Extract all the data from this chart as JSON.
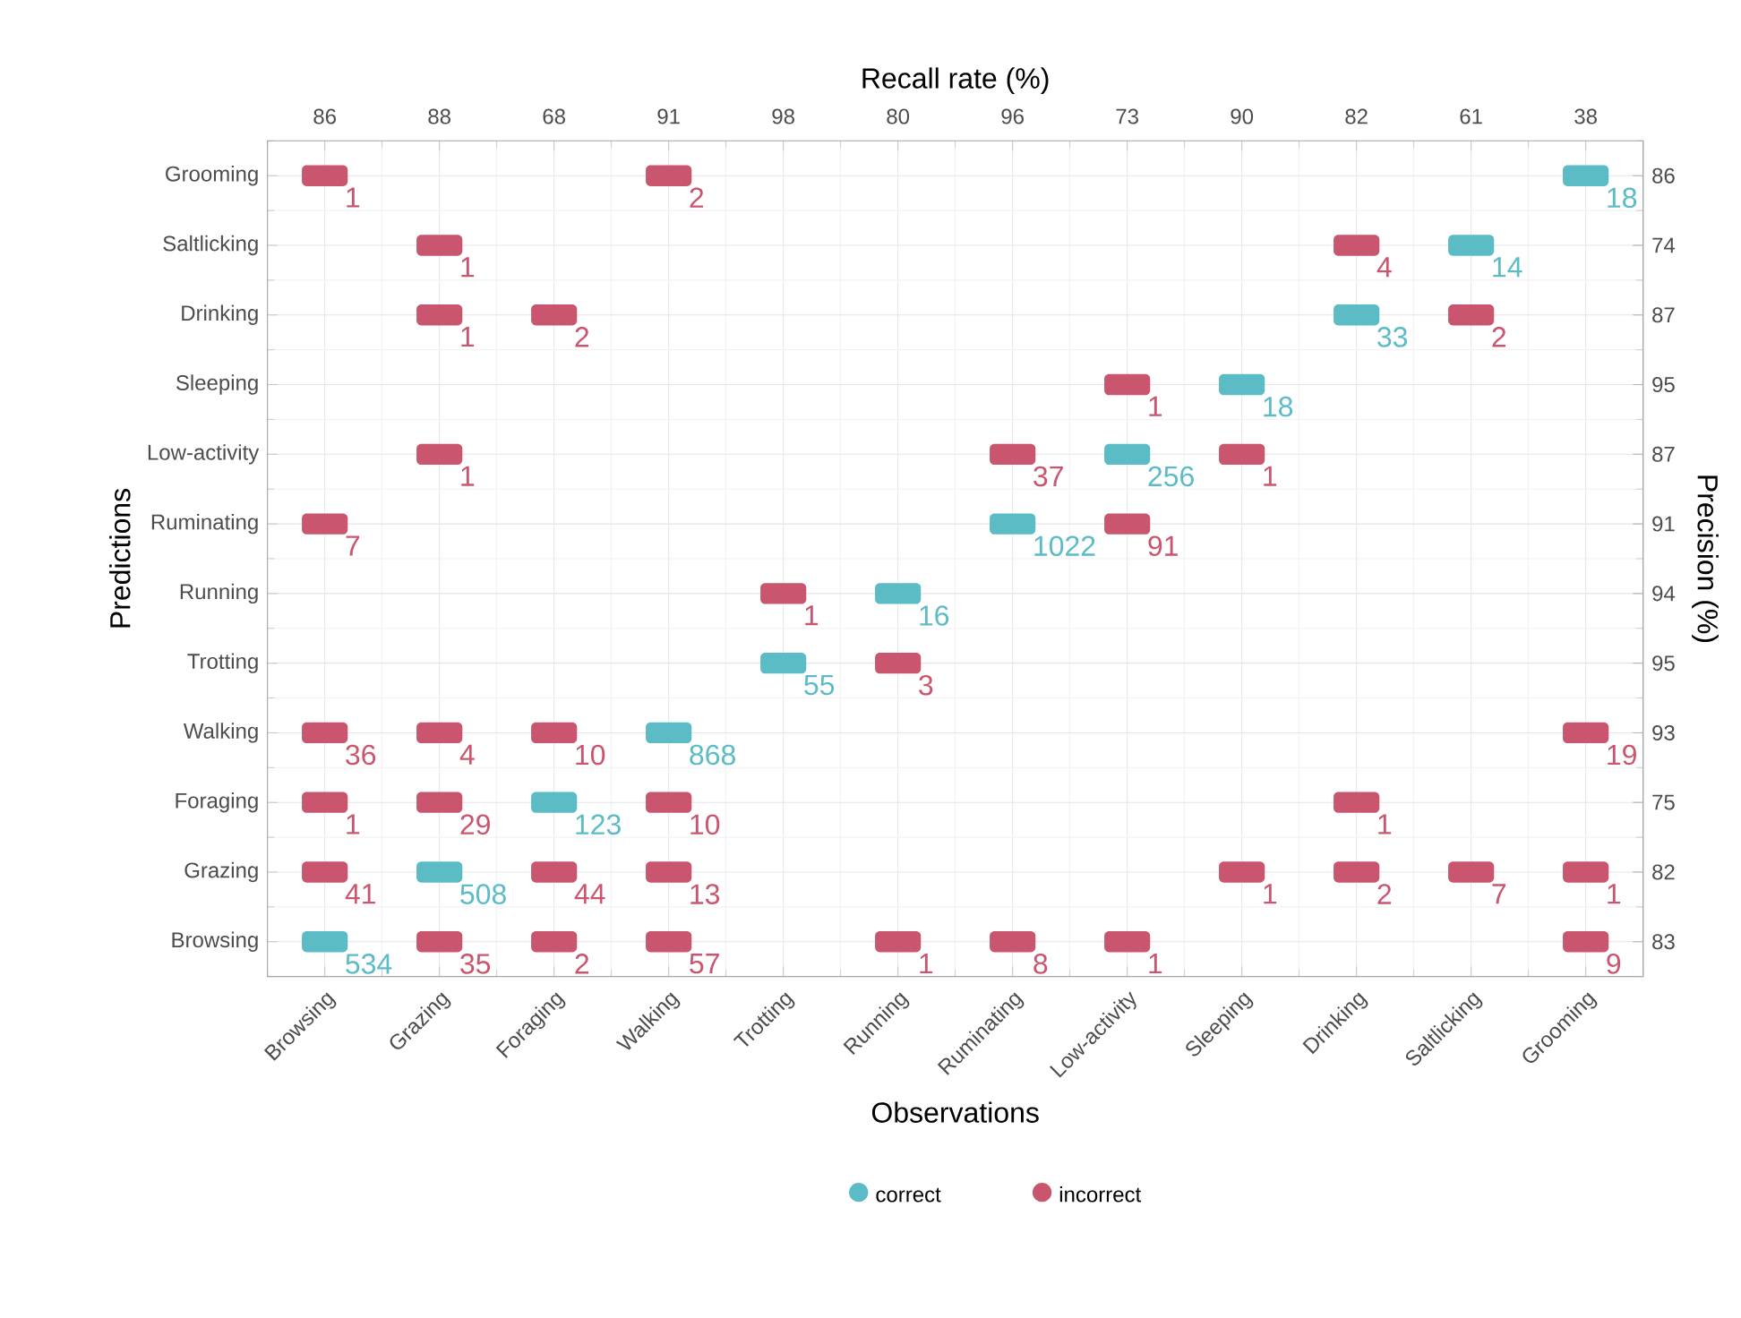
{
  "chart_data": {
    "type": "heatmap",
    "xlabel": "Observations",
    "ylabel": "Predictions",
    "x2label": "Recall rate (%)",
    "y2label": "Precision (%)",
    "categories": [
      "Browsing",
      "Grazing",
      "Foraging",
      "Walking",
      "Trotting",
      "Running",
      "Ruminating",
      "Low-activity",
      "Sleeping",
      "Drinking",
      "Saltlicking",
      "Grooming"
    ],
    "y_categories": [
      "Grooming",
      "Saltlicking",
      "Drinking",
      "Sleeping",
      "Low-activity",
      "Ruminating",
      "Running",
      "Trotting",
      "Walking",
      "Foraging",
      "Grazing",
      "Browsing"
    ],
    "y2_categories": [
      "86",
      "74",
      "87",
      "95",
      "87",
      "91",
      "94",
      "95",
      "93",
      "75",
      "82",
      "83"
    ],
    "cells": [
      [
        1,
        null,
        null,
        2,
        null,
        null,
        null,
        null,
        null,
        null,
        null,
        18
      ],
      [
        null,
        1,
        null,
        null,
        null,
        null,
        null,
        null,
        null,
        4,
        14,
        null
      ],
      [
        null,
        1,
        2,
        null,
        null,
        null,
        null,
        null,
        null,
        33,
        2,
        null
      ],
      [
        null,
        null,
        null,
        null,
        null,
        null,
        null,
        1,
        18,
        null,
        null,
        null
      ],
      [
        null,
        1,
        null,
        null,
        null,
        null,
        37,
        256,
        1,
        null,
        null,
        null
      ],
      [
        7,
        null,
        null,
        null,
        null,
        null,
        1022,
        91,
        null,
        null,
        null,
        null
      ],
      [
        null,
        null,
        null,
        null,
        1,
        16,
        null,
        null,
        null,
        null,
        null,
        null
      ],
      [
        null,
        null,
        null,
        null,
        55,
        3,
        null,
        null,
        null,
        null,
        null,
        null
      ],
      [
        36,
        4,
        10,
        868,
        null,
        null,
        null,
        null,
        null,
        null,
        null,
        19
      ],
      [
        1,
        29,
        123,
        10,
        null,
        null,
        null,
        null,
        null,
        1,
        null,
        null
      ],
      [
        41,
        508,
        44,
        13,
        null,
        null,
        null,
        null,
        1,
        2,
        7,
        1
      ],
      [
        534,
        35,
        2,
        57,
        null,
        1,
        8,
        1,
        null,
        null,
        null,
        9
      ]
    ],
    "annotations": [
      "86",
      "88",
      "68",
      "91",
      "98",
      "80",
      "96",
      "73",
      "90",
      "82",
      "61",
      "38",
      "correct",
      "incorrect"
    ],
    "colors": [
      "#5bbcc6",
      "#c9566e"
    ],
    "data_labels": true,
    "grid": true
  }
}
